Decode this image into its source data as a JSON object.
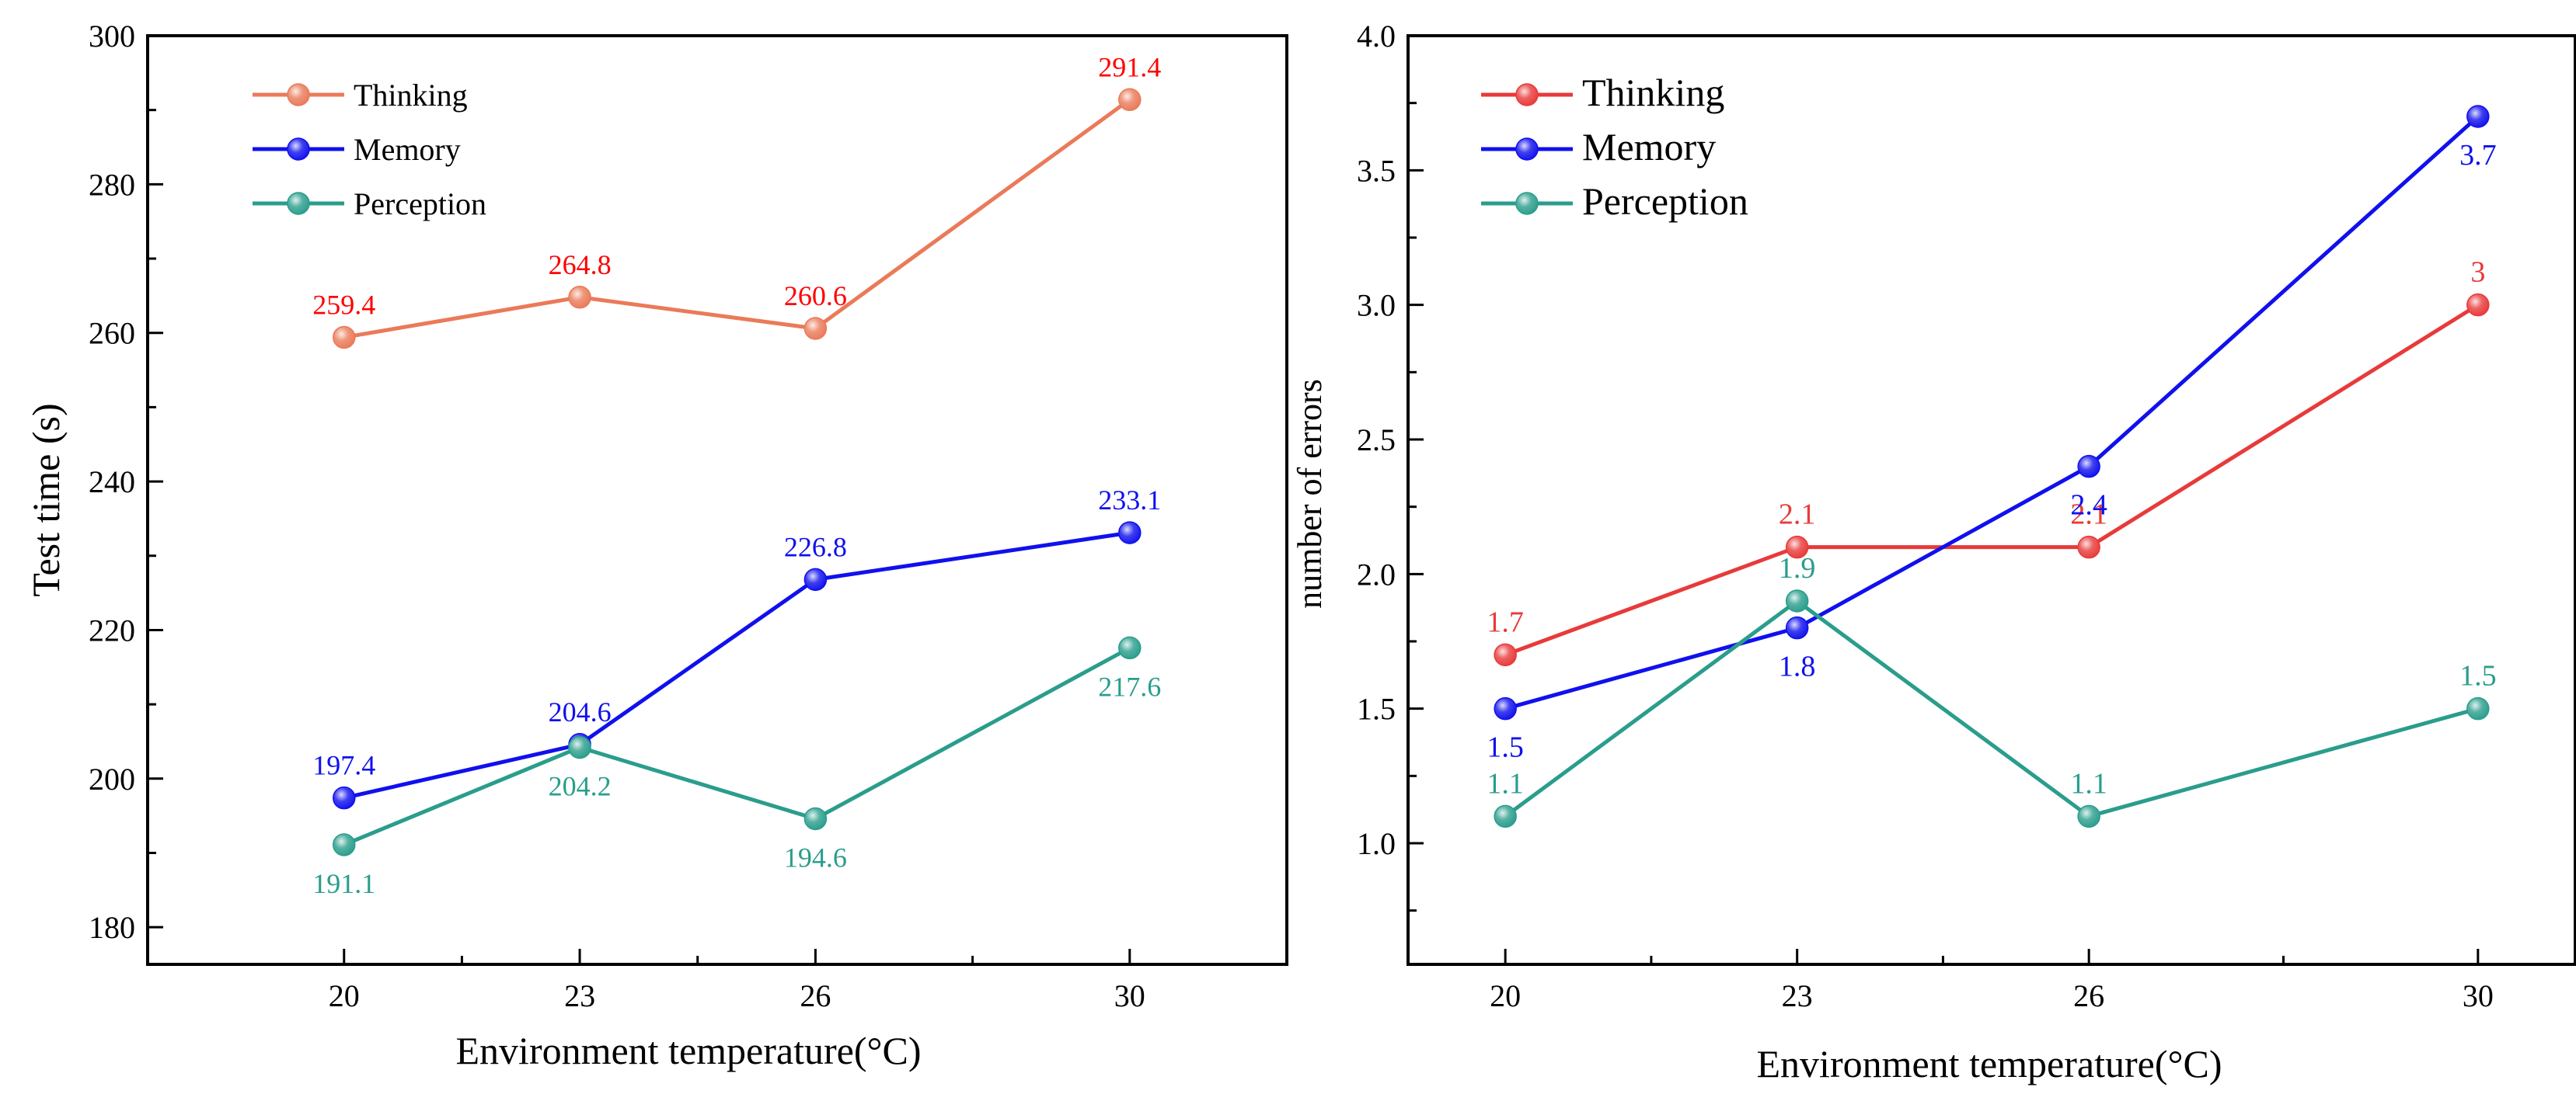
{
  "chart_data": [
    {
      "type": "line",
      "title": "",
      "xlabel": "Environment temperature(°C)",
      "ylabel": "Test time (s)",
      "x": [
        20,
        23,
        26,
        30
      ],
      "x_tick_labels": [
        "20",
        "23",
        "26",
        "30"
      ],
      "xlim": [
        17.5,
        32
      ],
      "ylim": [
        175,
        300
      ],
      "y_ticks": [
        180,
        200,
        220,
        240,
        260,
        280,
        300
      ],
      "y_tick_labels": [
        "180",
        "200",
        "220",
        "240",
        "260",
        "280",
        "300"
      ],
      "grid": false,
      "legend": "top-left",
      "series": [
        {
          "name": "Thinking",
          "color": "#ea7a59",
          "label_color": "#ff0000",
          "values": [
            259.4,
            264.8,
            260.6,
            291.4
          ],
          "data_labels": [
            "259.4",
            "264.8",
            "260.6",
            "291.4"
          ],
          "label_pos": [
            "above",
            "above",
            "above",
            "above"
          ]
        },
        {
          "name": "Memory",
          "color": "#1010ee",
          "label_color": "#1010ee",
          "values": [
            197.4,
            204.6,
            226.8,
            233.1
          ],
          "data_labels": [
            "197.4",
            "204.6",
            "226.8",
            "233.1"
          ],
          "label_pos": [
            "above",
            "above",
            "above",
            "above"
          ]
        },
        {
          "name": "Perception",
          "color": "#2a9d8c",
          "label_color": "#2a9d8c",
          "values": [
            191.1,
            204.2,
            194.6,
            217.6
          ],
          "data_labels": [
            "191.1",
            "204.2",
            "194.6",
            "217.6"
          ],
          "label_pos": [
            "below",
            "below",
            "below",
            "below"
          ]
        }
      ]
    },
    {
      "type": "line",
      "title": "",
      "xlabel": "Environment temperature(°C)",
      "ylabel": "number of errors",
      "x": [
        20,
        23,
        26,
        30
      ],
      "x_tick_labels": [
        "20",
        "23",
        "26",
        "30"
      ],
      "xlim": [
        19,
        31
      ],
      "ylim": [
        0.55,
        4.0
      ],
      "y_ticks": [
        1.0,
        1.5,
        2.0,
        2.5,
        3.0,
        3.5,
        4.0
      ],
      "y_tick_labels": [
        "1.0",
        "1.5",
        "2.0",
        "2.5",
        "3.0",
        "3.5",
        "4.0"
      ],
      "grid": false,
      "legend": "top-left",
      "series": [
        {
          "name": "Thinking",
          "color": "#e83a3a",
          "label_color": "#e83a3a",
          "values": [
            1.7,
            2.1,
            2.1,
            3.0
          ],
          "data_labels": [
            "1.7",
            "2.1",
            "2.1",
            "3"
          ],
          "label_pos": [
            "above",
            "above",
            "above",
            "above"
          ]
        },
        {
          "name": "Memory",
          "color": "#1010ee",
          "label_color": "#1010ee",
          "values": [
            1.5,
            1.8,
            2.4,
            3.7
          ],
          "data_labels": [
            "1.5",
            "1.8",
            "2.4",
            "3.7"
          ],
          "label_pos": [
            "below",
            "below",
            "below",
            "below"
          ]
        },
        {
          "name": "Perception",
          "color": "#2a9d8c",
          "label_color": "#2a9d8c",
          "values": [
            1.1,
            1.9,
            1.1,
            1.5
          ],
          "data_labels": [
            "1.1",
            "1.9",
            "1.1",
            "1.5"
          ],
          "label_pos": [
            "above",
            "above",
            "above",
            "above"
          ]
        }
      ]
    }
  ]
}
